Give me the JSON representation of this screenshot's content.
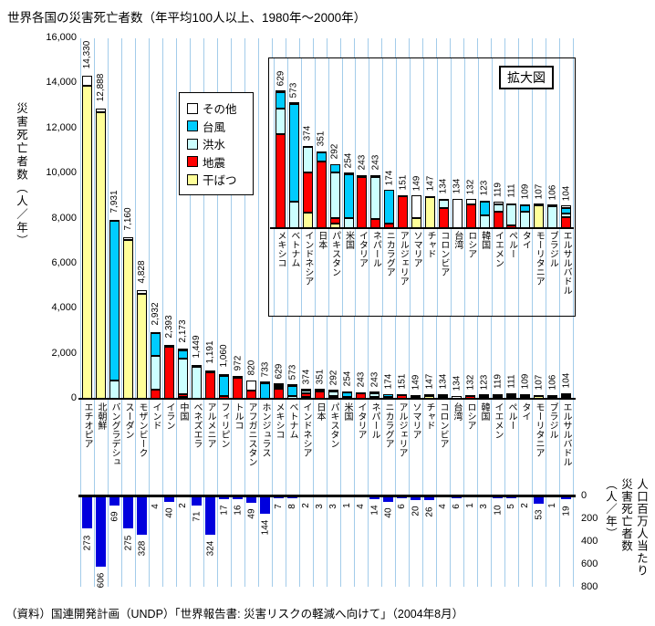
{
  "page": {
    "title": "世界各国の災害死亡者数（年平均100人以上、1980年～2000年）",
    "source": "（資料）国連開発計画（UNDP）「世界報告書: 災害リスクの軽減へ向けて」（2004年8月）",
    "inset_label": "拡大図"
  },
  "chart_data": [
    {
      "id": "disaster-deaths-by-country",
      "type": "bar",
      "stacked": true,
      "title": "世界各国の災害死亡者数（年平均100人以上、1980年～2000年）",
      "ylabel": "災害死亡者数（人／年）",
      "ylim": [
        0,
        16000
      ],
      "ytick_step": 2000,
      "yticks": [
        "0",
        "2,000",
        "4,000",
        "6,000",
        "8,000",
        "10,000",
        "12,000",
        "14,000",
        "16,000"
      ],
      "grid": "vertical-only",
      "gridline_color": "#A3CCEA",
      "legend_position": "inside-upper-left",
      "legend": [
        {
          "name": "その他",
          "color": "#FFFFFF"
        },
        {
          "name": "台風",
          "color": "#00CCFF"
        },
        {
          "name": "洪水",
          "color": "#CCFFFF"
        },
        {
          "name": "地震",
          "color": "#FF0000"
        },
        {
          "name": "干ばつ",
          "color": "#FFFF99"
        }
      ],
      "categories": [
        "エチオピア",
        "北朝鮮",
        "バングラデシュ",
        "スーダン",
        "モザンビーク",
        "インド",
        "イラン",
        "中国",
        "ベネズエラ",
        "アルメニア",
        "フィリピン",
        "トルコ",
        "アフガニスタン",
        "ホンジュラス",
        "メキシコ",
        "ベトナム",
        "インドネシア",
        "日本",
        "パキスタン",
        "米国",
        "イタリア",
        "ネパール",
        "ニカラグア",
        "アルジェリア",
        "ソマリア",
        "チャド",
        "コロンビア",
        "台湾",
        "ロシア",
        "韓国",
        "イエメン",
        "ペルー",
        "タイ",
        "モーリタニア",
        "ブラジル",
        "エルサルバドル"
      ],
      "totals": [
        14330,
        12888,
        7931,
        7160,
        4828,
        2932,
        2393,
        2173,
        1449,
        1191,
        1060,
        972,
        820,
        733,
        629,
        573,
        374,
        351,
        292,
        254,
        243,
        243,
        174,
        151,
        149,
        147,
        134,
        134,
        132,
        123,
        119,
        111,
        109,
        107,
        106,
        104
      ],
      "total_labels": [
        "14,330",
        "12,888",
        "7,931",
        "7,160",
        "4,828",
        "2,932",
        "2,393",
        "2,173",
        "1,449",
        "1,191",
        "1,060",
        "972",
        "820",
        "733",
        "629",
        "573",
        "374",
        "351",
        "292",
        "254",
        "243",
        "243",
        "174",
        "151",
        "149",
        "147",
        "134",
        "134",
        "132",
        "123",
        "119",
        "111",
        "109",
        "107",
        "106",
        "104"
      ],
      "series_bottom_to_top": [
        {
          "name": "干ばつ",
          "color": "#FFFF99",
          "values": [
            13900,
            12738,
            0,
            7060,
            4640,
            0,
            0,
            60,
            0,
            0,
            0,
            0,
            0,
            0,
            0,
            0,
            70,
            0,
            20,
            0,
            0,
            0,
            0,
            0,
            45,
            140,
            0,
            0,
            0,
            0,
            0,
            0,
            0,
            104,
            0,
            0
          ]
        },
        {
          "name": "地震",
          "color": "#FF0000",
          "values": [
            0,
            0,
            0,
            0,
            0,
            400,
            2290,
            130,
            0,
            1181,
            110,
            950,
            370,
            0,
            430,
            0,
            185,
            305,
            25,
            0,
            235,
            42,
            20,
            145,
            0,
            0,
            90,
            0,
            108,
            0,
            75,
            12,
            0,
            0,
            0,
            50
          ]
        },
        {
          "name": "洪水",
          "color": "#CCFFFF",
          "values": [
            0,
            0,
            820,
            0,
            0,
            1500,
            0,
            1590,
            1429,
            0,
            0,
            0,
            0,
            0,
            115,
            120,
            115,
            0,
            210,
            45,
            0,
            190,
            0,
            0,
            0,
            0,
            38,
            0,
            0,
            60,
            35,
            95,
            75,
            0,
            100,
            18
          ]
        },
        {
          "name": "台風",
          "color": "#00CCFF",
          "values": [
            0,
            0,
            7061,
            0,
            0,
            1002,
            0,
            363,
            0,
            0,
            920,
            0,
            0,
            700,
            75,
            445,
            0,
            40,
            37,
            200,
            0,
            0,
            154,
            0,
            0,
            0,
            0,
            0,
            0,
            60,
            0,
            0,
            28,
            0,
            0,
            22
          ]
        },
        {
          "name": "その他",
          "color": "#FFFFFF",
          "values": [
            430,
            150,
            50,
            100,
            188,
            30,
            103,
            30,
            20,
            10,
            30,
            22,
            450,
            33,
            9,
            8,
            4,
            6,
            0,
            9,
            8,
            11,
            0,
            6,
            104,
            7,
            6,
            134,
            24,
            3,
            9,
            4,
            6,
            3,
            6,
            14
          ]
        }
      ],
      "inset": {
        "label": "拡大図",
        "start_index": 14,
        "shows": "メキシコ〜エルサルバドル (629〜104)"
      }
    },
    {
      "id": "disaster-deaths-per-million",
      "type": "bar",
      "orientation": "downward",
      "ylabel": "人口百万人当たり災害死亡者数（人／年）",
      "ylabel_lines": "人口百万人当たり\n災害死亡者数\n（人／年）",
      "ylim": [
        0,
        800
      ],
      "yticks": [
        "0",
        "200",
        "400",
        "600",
        "800"
      ],
      "bar_color": "#0000DD",
      "categories_same_as_above": true,
      "values": [
        273,
        606,
        69,
        275,
        328,
        4,
        40,
        2,
        71,
        324,
        17,
        16,
        49,
        144,
        7,
        8,
        2,
        3,
        3,
        1,
        4,
        14,
        40,
        6,
        20,
        26,
        4,
        6,
        1,
        3,
        10,
        5,
        2,
        53,
        1,
        19
      ],
      "value_labels": [
        "273",
        "606",
        "69",
        "275",
        "328",
        "4",
        "40",
        "2",
        "71",
        "324",
        "17",
        "16",
        "49",
        "144",
        "7",
        "8",
        "2",
        "3",
        "3",
        "1",
        "4",
        "14",
        "40",
        "6",
        "20",
        "26",
        "4",
        "6",
        "1",
        "3",
        "10",
        "5",
        "2",
        "53",
        "1",
        "19"
      ]
    }
  ]
}
